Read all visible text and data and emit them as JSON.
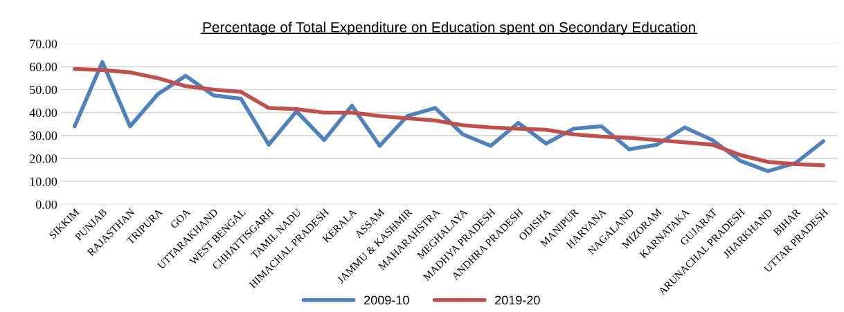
{
  "chart_data": {
    "type": "line",
    "title": "Percentage of Total Expenditure on Education spent on Secondary Education",
    "categories": [
      "SIKKIM",
      "PUNJAB",
      "RAJASTHAN",
      "TRIPURA",
      "GOA",
      "UTTARAKHAND",
      "WEST BENGAL",
      "CHHATTISGARH",
      "TAMIL NADU",
      "HIMACHAL PRADESH",
      "KERALA",
      "ASSAM",
      "JAMMU & KASHMIR",
      "MAHARAHSTRA",
      "MEGHALAYA",
      "MADHYA PRADESH",
      "ANDHRA PRADESH",
      "ODISHA",
      "MANIPUR",
      "HARYANA",
      "NAGALAND",
      "MIZORAM",
      "KARNATAKA",
      "GUJARAT",
      "ARUNACHAL PRADESH",
      "JHARKHAND",
      "BIHAR",
      "UTTAR PRADESH"
    ],
    "series": [
      {
        "name": "2009-10",
        "color": "#4f81bd",
        "values": [
          34,
          62,
          34,
          48,
          56,
          47.5,
          46,
          26,
          40.5,
          28,
          43,
          25.5,
          38.5,
          42,
          30.5,
          25.5,
          35.5,
          26.5,
          33,
          34,
          24,
          26,
          33.5,
          28,
          19,
          14.5,
          18,
          27.5
        ]
      },
      {
        "name": "2019-20",
        "color": "#c0504d",
        "values": [
          59,
          58.5,
          57.5,
          55,
          51.5,
          50,
          49,
          42,
          41.5,
          40,
          40,
          38.5,
          37.5,
          36.5,
          34.5,
          33.5,
          33,
          32.5,
          30.5,
          29.5,
          29,
          28,
          27,
          26,
          21.5,
          18.5,
          17.5,
          17
        ]
      }
    ],
    "ylim": [
      0,
      70
    ],
    "yticks": [
      {
        "value": 0,
        "label": "0.00"
      },
      {
        "value": 10,
        "label": "10.00"
      },
      {
        "value": 20,
        "label": "20.00"
      },
      {
        "value": 30,
        "label": "30.00"
      },
      {
        "value": 40,
        "label": "40.00"
      },
      {
        "value": 50,
        "label": "50.00"
      },
      {
        "value": 60,
        "label": "60.00"
      },
      {
        "value": 70,
        "label": "70.00"
      }
    ],
    "grid": "y",
    "legend": "bottom",
    "marker": "none",
    "line_style": "solid"
  }
}
